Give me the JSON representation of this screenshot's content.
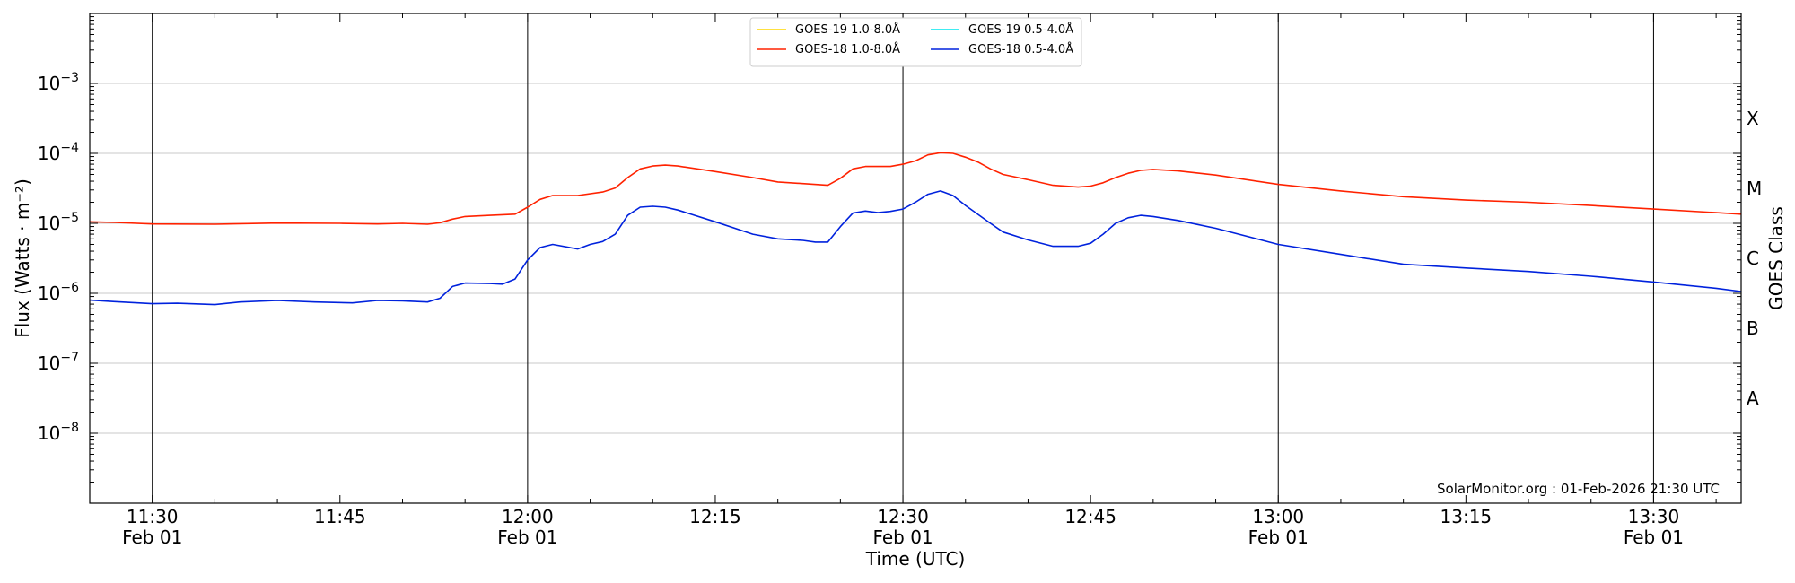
{
  "chart_data": {
    "type": "line",
    "xlabel": "Time (UTC)",
    "ylabel": "Flux (Watts · m⁻²)",
    "right_label": "GOES Class",
    "credit": "SolarMonitor.org : 01-Feb-2026 21:30 UTC",
    "y_scale": "log",
    "ylim_exp": [
      -9,
      -2
    ],
    "xlim_minutes": [
      "11:25",
      "13:37"
    ],
    "grid": "horizontal",
    "legend_position": "top-center",
    "y_ticks": [
      {
        "base": "10",
        "exp": "−8",
        "value_exp": -8
      },
      {
        "base": "10",
        "exp": "−7",
        "value_exp": -7
      },
      {
        "base": "10",
        "exp": "−6",
        "value_exp": -6
      },
      {
        "base": "10",
        "exp": "−5",
        "value_exp": -5
      },
      {
        "base": "10",
        "exp": "−4",
        "value_exp": -4
      },
      {
        "base": "10",
        "exp": "−3",
        "value_exp": -3
      }
    ],
    "goes_classes": [
      {
        "label": "A",
        "value_exp": -7.5
      },
      {
        "label": "B",
        "value_exp": -6.5
      },
      {
        "label": "C",
        "value_exp": -5.5
      },
      {
        "label": "M",
        "value_exp": -4.5
      },
      {
        "label": "X",
        "value_exp": -3.5
      }
    ],
    "x_ticks": [
      {
        "time": "11:30",
        "date": "Feb 01",
        "major": true
      },
      {
        "time": "11:45",
        "date": "",
        "major": false
      },
      {
        "time": "12:00",
        "date": "Feb 01",
        "major": true
      },
      {
        "time": "12:15",
        "date": "",
        "major": false
      },
      {
        "time": "12:30",
        "date": "Feb 01",
        "major": true
      },
      {
        "time": "12:45",
        "date": "",
        "major": false
      },
      {
        "time": "13:00",
        "date": "Feb 01",
        "major": true
      },
      {
        "time": "13:15",
        "date": "",
        "major": false
      },
      {
        "time": "13:30",
        "date": "Feb 01",
        "major": true
      }
    ],
    "legend": [
      {
        "name": "GOES-19 1.0-8.0Å",
        "color": "#ffd700"
      },
      {
        "name": "GOES-19 0.5-4.0Å",
        "color": "#00e5ee"
      },
      {
        "name": "GOES-18 1.0-8.0Å",
        "color": "#ff2200"
      },
      {
        "name": "GOES-18 0.5-4.0Å",
        "color": "#0022dd"
      }
    ],
    "series": [
      {
        "name": "GOES-18 1.0-8.0Å",
        "color": "#ff2200",
        "points": [
          [
            "11:25",
            1.05e-05
          ],
          [
            "11:27",
            1.03e-05
          ],
          [
            "11:30",
            9.8e-06
          ],
          [
            "11:35",
            9.7e-06
          ],
          [
            "11:40",
            1.01e-05
          ],
          [
            "11:45",
            1e-05
          ],
          [
            "11:48",
            9.8e-06
          ],
          [
            "11:50",
            1e-05
          ],
          [
            "11:52",
            9.7e-06
          ],
          [
            "11:53",
            1.02e-05
          ],
          [
            "11:54",
            1.15e-05
          ],
          [
            "11:55",
            1.25e-05
          ],
          [
            "11:57",
            1.3e-05
          ],
          [
            "11:59",
            1.35e-05
          ],
          [
            "12:00",
            1.7e-05
          ],
          [
            "12:01",
            2.2e-05
          ],
          [
            "12:02",
            2.5e-05
          ],
          [
            "12:04",
            2.5e-05
          ],
          [
            "12:06",
            2.8e-05
          ],
          [
            "12:07",
            3.2e-05
          ],
          [
            "12:08",
            4.5e-05
          ],
          [
            "12:09",
            6e-05
          ],
          [
            "12:10",
            6.6e-05
          ],
          [
            "12:11",
            6.8e-05
          ],
          [
            "12:12",
            6.6e-05
          ],
          [
            "12:15",
            5.5e-05
          ],
          [
            "12:18",
            4.5e-05
          ],
          [
            "12:20",
            3.9e-05
          ],
          [
            "12:22",
            3.7e-05
          ],
          [
            "12:24",
            3.5e-05
          ],
          [
            "12:25",
            4.4e-05
          ],
          [
            "12:26",
            6e-05
          ],
          [
            "12:27",
            6.5e-05
          ],
          [
            "12:29",
            6.5e-05
          ],
          [
            "12:30",
            7e-05
          ],
          [
            "12:31",
            7.8e-05
          ],
          [
            "12:32",
            9.5e-05
          ],
          [
            "12:33",
            0.000102
          ],
          [
            "12:34",
            0.0001
          ],
          [
            "12:35",
            8.8e-05
          ],
          [
            "12:36",
            7.5e-05
          ],
          [
            "12:37",
            6e-05
          ],
          [
            "12:38",
            5e-05
          ],
          [
            "12:40",
            4.2e-05
          ],
          [
            "12:42",
            3.5e-05
          ],
          [
            "12:44",
            3.3e-05
          ],
          [
            "12:45",
            3.4e-05
          ],
          [
            "12:46",
            3.8e-05
          ],
          [
            "12:47",
            4.5e-05
          ],
          [
            "12:48",
            5.2e-05
          ],
          [
            "12:49",
            5.7e-05
          ],
          [
            "12:50",
            5.9e-05
          ],
          [
            "12:52",
            5.6e-05
          ],
          [
            "12:55",
            4.9e-05
          ],
          [
            "13:00",
            3.6e-05
          ],
          [
            "13:05",
            2.9e-05
          ],
          [
            "13:10",
            2.4e-05
          ],
          [
            "13:15",
            2.15e-05
          ],
          [
            "13:20",
            2e-05
          ],
          [
            "13:25",
            1.8e-05
          ],
          [
            "13:30",
            1.6e-05
          ],
          [
            "13:35",
            1.42e-05
          ],
          [
            "13:37",
            1.35e-05
          ]
        ]
      },
      {
        "name": "GOES-18 0.5-4.0Å",
        "color": "#0022dd",
        "points": [
          [
            "11:25",
            8e-07
          ],
          [
            "11:27",
            7.6e-07
          ],
          [
            "11:30",
            7.1e-07
          ],
          [
            "11:32",
            7.2e-07
          ],
          [
            "11:35",
            6.9e-07
          ],
          [
            "11:37",
            7.5e-07
          ],
          [
            "11:40",
            7.9e-07
          ],
          [
            "11:43",
            7.5e-07
          ],
          [
            "11:46",
            7.3e-07
          ],
          [
            "11:48",
            7.9e-07
          ],
          [
            "11:50",
            7.8e-07
          ],
          [
            "11:52",
            7.5e-07
          ],
          [
            "11:53",
            8.5e-07
          ],
          [
            "11:54",
            1.25e-06
          ],
          [
            "11:55",
            1.4e-06
          ],
          [
            "11:57",
            1.38e-06
          ],
          [
            "11:58",
            1.35e-06
          ],
          [
            "11:59",
            1.6e-06
          ],
          [
            "12:00",
            3e-06
          ],
          [
            "12:01",
            4.5e-06
          ],
          [
            "12:02",
            5e-06
          ],
          [
            "12:04",
            4.3e-06
          ],
          [
            "12:05",
            5e-06
          ],
          [
            "12:06",
            5.5e-06
          ],
          [
            "12:07",
            7e-06
          ],
          [
            "12:08",
            1.3e-05
          ],
          [
            "12:09",
            1.7e-05
          ],
          [
            "12:10",
            1.75e-05
          ],
          [
            "12:11",
            1.7e-05
          ],
          [
            "12:12",
            1.55e-05
          ],
          [
            "12:15",
            1.05e-05
          ],
          [
            "12:18",
            7e-06
          ],
          [
            "12:20",
            6e-06
          ],
          [
            "12:22",
            5.7e-06
          ],
          [
            "12:23",
            5.4e-06
          ],
          [
            "12:24",
            5.4e-06
          ],
          [
            "12:25",
            9e-06
          ],
          [
            "12:26",
            1.4e-05
          ],
          [
            "12:27",
            1.5e-05
          ],
          [
            "12:28",
            1.42e-05
          ],
          [
            "12:29",
            1.48e-05
          ],
          [
            "12:30",
            1.6e-05
          ],
          [
            "12:31",
            2e-05
          ],
          [
            "12:32",
            2.6e-05
          ],
          [
            "12:33",
            2.9e-05
          ],
          [
            "12:34",
            2.5e-05
          ],
          [
            "12:35",
            1.8e-05
          ],
          [
            "12:37",
            1e-05
          ],
          [
            "12:38",
            7.5e-06
          ],
          [
            "12:40",
            5.8e-06
          ],
          [
            "12:42",
            4.7e-06
          ],
          [
            "12:44",
            4.7e-06
          ],
          [
            "12:45",
            5.2e-06
          ],
          [
            "12:46",
            7e-06
          ],
          [
            "12:47",
            1e-05
          ],
          [
            "12:48",
            1.2e-05
          ],
          [
            "12:49",
            1.3e-05
          ],
          [
            "12:50",
            1.25e-05
          ],
          [
            "12:52",
            1.1e-05
          ],
          [
            "12:55",
            8.5e-06
          ],
          [
            "13:00",
            5e-06
          ],
          [
            "13:05",
            3.6e-06
          ],
          [
            "13:10",
            2.6e-06
          ],
          [
            "13:15",
            2.3e-06
          ],
          [
            "13:20",
            2.05e-06
          ],
          [
            "13:25",
            1.75e-06
          ],
          [
            "13:30",
            1.45e-06
          ],
          [
            "13:35",
            1.18e-06
          ],
          [
            "13:37",
            1.06e-06
          ]
        ]
      }
    ]
  }
}
